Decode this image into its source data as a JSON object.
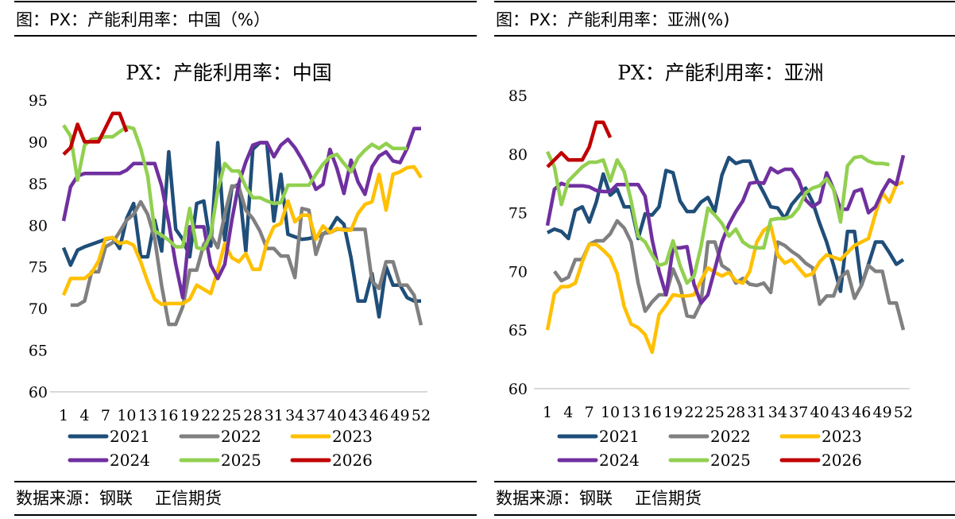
{
  "panels": [
    {
      "caption": "图：PX：产能利用率：中国（%）",
      "source": "数据来源：钢联",
      "company": "正信期货"
    },
    {
      "caption": "图：PX：产能利用率：亚洲(%)",
      "source": "数据来源：钢联",
      "company": "正信期货"
    }
  ],
  "chart_data": [
    {
      "type": "line",
      "title": "PX：产能利用率：中国",
      "xlabel": "",
      "ylabel": "",
      "ylim": [
        60,
        95
      ],
      "yticks": [
        60,
        65,
        70,
        75,
        80,
        85,
        90,
        95
      ],
      "xlim": [
        1,
        52
      ],
      "xticks": [
        1,
        4,
        7,
        10,
        13,
        16,
        19,
        22,
        25,
        28,
        31,
        34,
        37,
        40,
        43,
        46,
        49,
        52
      ],
      "grid": false,
      "legend_position": "bottom",
      "series": [
        {
          "name": "2021",
          "color": "#1f4e79",
          "values": [
            77.3,
            75.2,
            77.0,
            77.4,
            77.7,
            78.0,
            78.3,
            78.5,
            77.2,
            80.8,
            82.6,
            76.2,
            76.2,
            80.6,
            76.9,
            88.8,
            79.5,
            78.3,
            76.2,
            82.6,
            82.9,
            77.5,
            89.9,
            78.2,
            84.5,
            84.9,
            76.9,
            89.1,
            89.9,
            89.9,
            80.5,
            86.1,
            78.9,
            78.6,
            78.3,
            78.4,
            78.6,
            78.9,
            79.5,
            80.9,
            80.1,
            76.1,
            70.9,
            70.9,
            74.2,
            69.0,
            75.0,
            72.8,
            72.8,
            71.3,
            70.9,
            70.9
          ]
        },
        {
          "name": "2022",
          "color": "#808080",
          "values": [
            null,
            70.4,
            70.4,
            70.9,
            74.4,
            74.4,
            77.4,
            77.9,
            79.2,
            80.6,
            81.3,
            82.8,
            81.3,
            78.4,
            72.7,
            68.1,
            68.1,
            70.2,
            74.6,
            74.6,
            77.7,
            78.8,
            77.3,
            81.3,
            84.7,
            84.6,
            81.8,
            80.8,
            79.3,
            77.2,
            77.2,
            76.3,
            76.3,
            73.7,
            82.0,
            81.8,
            76.5,
            79.0,
            79.1,
            79.5,
            79.5,
            79.5,
            79.5,
            79.5,
            73.3,
            72.4,
            75.6,
            75.6,
            72.8,
            72.8,
            71.6,
            68.0
          ]
        },
        {
          "name": "2023",
          "color": "#ffc000",
          "values": [
            71.6,
            73.6,
            73.6,
            73.6,
            74.3,
            75.7,
            78.4,
            78.5,
            77.8,
            78.0,
            77.6,
            75.6,
            73.2,
            71.1,
            70.5,
            70.6,
            70.6,
            70.6,
            71.1,
            72.8,
            72.3,
            71.8,
            74.6,
            77.8,
            76.1,
            75.6,
            76.6,
            74.7,
            74.7,
            77.9,
            79.8,
            80.2,
            82.9,
            80.4,
            81.2,
            81.2,
            78.3,
            79.9,
            79.1,
            79.6,
            79.4,
            79.4,
            81.4,
            82.5,
            82.8,
            86.1,
            81.8,
            86.1,
            86.4,
            86.9,
            87.0,
            85.7
          ]
        },
        {
          "name": "2024",
          "color": "#7030a0",
          "values": [
            80.5,
            84.6,
            85.9,
            86.2,
            86.2,
            86.2,
            86.2,
            86.2,
            86.2,
            86.6,
            87.4,
            87.4,
            87.4,
            87.4,
            84.7,
            80.3,
            75.3,
            71.3,
            79.8,
            79.8,
            79.8,
            75.2,
            73.6,
            75.3,
            80.6,
            85.0,
            87.6,
            89.6,
            89.9,
            89.9,
            88.2,
            89.6,
            90.3,
            89.3,
            87.9,
            86.3,
            84.3,
            84.9,
            89.1,
            86.8,
            83.8,
            87.8,
            85.2,
            83.7,
            87.0,
            88.3,
            88.8,
            87.7,
            87.5,
            89.2,
            91.6,
            91.6
          ]
        },
        {
          "name": "2025",
          "color": "#92d050",
          "values": [
            92.0,
            90.7,
            85.4,
            89.6,
            90.3,
            90.4,
            90.6,
            90.6,
            91.2,
            91.8,
            91.6,
            89.2,
            85.9,
            79.3,
            78.8,
            78.2,
            77.4,
            77.4,
            82.0,
            77.3,
            77.1,
            78.9,
            84.2,
            87.4,
            86.5,
            86.5,
            84.6,
            83.3,
            83.3,
            82.9,
            82.6,
            82.7,
            84.8,
            84.8,
            84.8,
            84.8,
            86.1,
            87.3,
            88.2,
            88.5,
            87.4,
            86.4,
            88.1,
            89.0,
            89.7,
            89.2,
            89.8,
            89.2,
            89.2,
            89.2,
            null,
            null
          ]
        },
        {
          "name": "2026",
          "color": "#c00000",
          "values": [
            88.5,
            89.3,
            92.1,
            90.0,
            90.0,
            90.0,
            91.7,
            93.4,
            93.4,
            91.2,
            null,
            null,
            null,
            null,
            null,
            null,
            null,
            null,
            null,
            null,
            null,
            null,
            null,
            null,
            null,
            null,
            null,
            null,
            null,
            null,
            null,
            null,
            null,
            null,
            null,
            null,
            null,
            null,
            null,
            null,
            null,
            null,
            null,
            null,
            null,
            null,
            null,
            null,
            null,
            null,
            null,
            null
          ]
        }
      ]
    },
    {
      "type": "line",
      "title": "PX：产能利用率：亚洲",
      "xlabel": "",
      "ylabel": "",
      "ylim": [
        60,
        85
      ],
      "yticks": [
        60,
        65,
        70,
        75,
        80,
        85
      ],
      "xlim": [
        1,
        52
      ],
      "xticks": [
        1,
        4,
        7,
        10,
        13,
        16,
        19,
        22,
        25,
        28,
        31,
        34,
        37,
        40,
        43,
        46,
        49,
        52
      ],
      "grid": false,
      "legend_position": "bottom",
      "series": [
        {
          "name": "2021",
          "color": "#1f4e79",
          "values": [
            73.3,
            73.6,
            73.4,
            72.8,
            75.2,
            75.5,
            74.2,
            75.9,
            78.3,
            76.5,
            77.0,
            75.5,
            75.5,
            72.8,
            74.9,
            74.8,
            75.5,
            78.6,
            78.4,
            76.0,
            75.1,
            75.1,
            75.9,
            76.3,
            75.1,
            78.2,
            79.7,
            79.2,
            79.4,
            79.4,
            77.8,
            76.7,
            75.5,
            75.4,
            74.5,
            75.7,
            76.4,
            77.1,
            75.9,
            74.1,
            72.5,
            70.5,
            68.3,
            73.4,
            73.4,
            68.8,
            70.6,
            72.5,
            72.5,
            71.6,
            70.6,
            71.0
          ]
        },
        {
          "name": "2022",
          "color": "#808080",
          "values": [
            null,
            70.0,
            69.2,
            69.5,
            71.0,
            71.0,
            72.3,
            72.6,
            72.6,
            73.2,
            74.3,
            73.7,
            72.5,
            69.0,
            66.6,
            67.4,
            68.0,
            68.0,
            70.2,
            68.8,
            66.2,
            66.1,
            67.3,
            72.5,
            72.5,
            70.5,
            70.1,
            69.0,
            69.4,
            68.9,
            68.8,
            69.0,
            68.2,
            72.5,
            72.2,
            71.7,
            71.3,
            70.7,
            70.3,
            67.2,
            67.9,
            67.9,
            69.5,
            70.0,
            67.7,
            68.8,
            70.5,
            70.0,
            70.0,
            67.3,
            67.3,
            65.0
          ]
        },
        {
          "name": "2023",
          "color": "#ffc000",
          "values": [
            65.0,
            68.1,
            68.7,
            68.7,
            69.0,
            70.8,
            72.3,
            72.3,
            71.8,
            71.2,
            69.8,
            67.0,
            65.5,
            65.2,
            64.6,
            63.1,
            66.3,
            67.1,
            68.0,
            67.9,
            67.9,
            68.0,
            69.2,
            70.3,
            69.9,
            69.6,
            69.9,
            69.2,
            69.0,
            70.0,
            72.5,
            73.5,
            73.9,
            71.4,
            70.7,
            71.0,
            70.3,
            69.6,
            69.8,
            70.8,
            71.4,
            71.2,
            71.0,
            71.6,
            72.2,
            72.5,
            72.8,
            74.9,
            76.7,
            75.9,
            77.4,
            77.6
          ]
        },
        {
          "name": "2024",
          "color": "#7030a0",
          "values": [
            73.9,
            77.0,
            77.5,
            77.3,
            77.3,
            77.3,
            77.2,
            76.9,
            76.8,
            76.8,
            77.4,
            77.4,
            77.4,
            77.4,
            76.4,
            72.7,
            70.0,
            68.0,
            72.0,
            72.0,
            72.1,
            68.9,
            67.3,
            68.0,
            70.2,
            72.5,
            74.0,
            75.1,
            76.0,
            77.5,
            77.6,
            77.5,
            78.8,
            78.4,
            78.7,
            78.7,
            77.8,
            76.1,
            75.5,
            75.9,
            78.4,
            77.0,
            75.3,
            75.3,
            76.8,
            77.0,
            75.0,
            75.5,
            76.8,
            77.8,
            77.4,
            79.9
          ]
        },
        {
          "name": "2025",
          "color": "#92d050",
          "values": [
            80.2,
            78.9,
            75.7,
            77.7,
            78.3,
            78.9,
            79.3,
            79.3,
            79.5,
            77.7,
            79.5,
            78.5,
            76.0,
            73.0,
            72.5,
            71.4,
            70.5,
            70.7,
            72.6,
            70.5,
            69.0,
            69.6,
            72.1,
            75.4,
            74.8,
            74.1,
            73.0,
            73.6,
            72.5,
            72.1,
            72.0,
            72.0,
            74.4,
            74.5,
            74.5,
            74.7,
            75.4,
            76.7,
            77.1,
            77.3,
            77.9,
            77.0,
            74.2,
            79.0,
            79.7,
            79.8,
            79.4,
            79.2,
            79.2,
            79.1,
            null,
            null
          ]
        },
        {
          "name": "2026",
          "color": "#c00000",
          "values": [
            78.9,
            79.5,
            80.1,
            79.5,
            79.5,
            79.5,
            80.6,
            82.7,
            82.7,
            81.4,
            null,
            null,
            null,
            null,
            null,
            null,
            null,
            null,
            null,
            null,
            null,
            null,
            null,
            null,
            null,
            null,
            null,
            null,
            null,
            null,
            null,
            null,
            null,
            null,
            null,
            null,
            null,
            null,
            null,
            null,
            null,
            null,
            null,
            null,
            null,
            null,
            null,
            null,
            null,
            null,
            null,
            null
          ]
        }
      ]
    }
  ]
}
